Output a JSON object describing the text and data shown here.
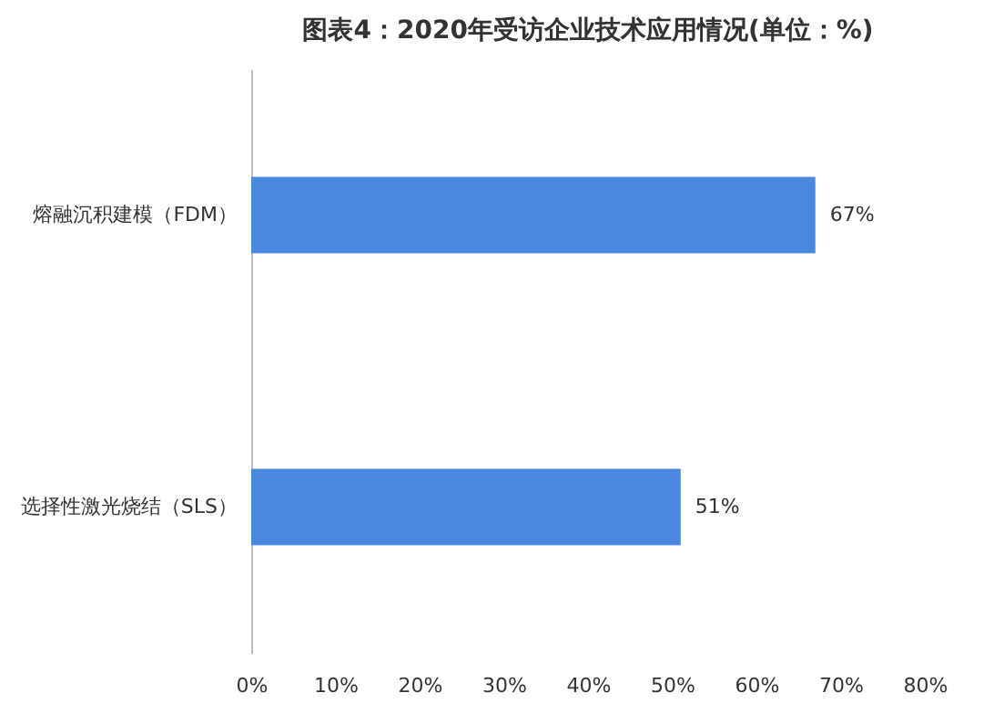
{
  "chart_data": {
    "type": "bar",
    "orientation": "horizontal",
    "title": "图表4：2020年受访企业技术应用情况(单位：%)",
    "categories": [
      "熔融沉积建模（FDM）",
      "选择性激光烧结（SLS）"
    ],
    "values": [
      67,
      51
    ],
    "color": "#4a88e0",
    "value_labels": [
      "67%",
      "51%"
    ],
    "xlim": [
      0,
      80
    ],
    "xticks": [
      {
        "value": 0,
        "label": "0%"
      },
      {
        "value": 10,
        "label": "10%"
      },
      {
        "value": 20,
        "label": "20%"
      },
      {
        "value": 30,
        "label": "30%"
      },
      {
        "value": 40,
        "label": "40%"
      },
      {
        "value": 50,
        "label": "50%"
      },
      {
        "value": 60,
        "label": "60%"
      },
      {
        "value": 70,
        "label": "70%"
      },
      {
        "value": 80,
        "label": "80%"
      }
    ],
    "grid": false
  }
}
